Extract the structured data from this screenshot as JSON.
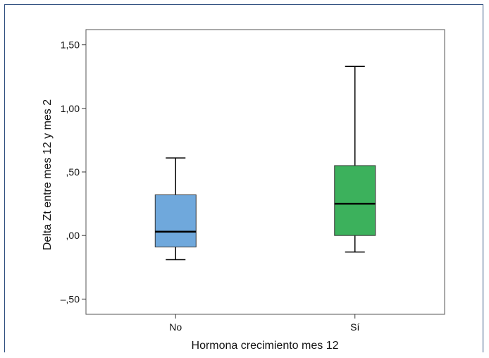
{
  "chart_data": {
    "type": "boxplot",
    "xlabel": "Hormona crecimiento mes 12",
    "ylabel": "Delta Zt entre mes 12 y mes 2",
    "ylim": [
      -0.62,
      1.62
    ],
    "y_ticks": [
      {
        "value": 1.5,
        "label": "1,50"
      },
      {
        "value": 1.0,
        "label": "1,00"
      },
      {
        "value": 0.5,
        "label": ",50"
      },
      {
        "value": 0.0,
        "label": ",00"
      },
      {
        "value": -0.5,
        "label": "–,50"
      }
    ],
    "categories": [
      "No",
      "Sí"
    ],
    "boxes": [
      {
        "category": "No",
        "min": -0.19,
        "q1": -0.09,
        "median": 0.03,
        "q3": 0.32,
        "max": 0.61,
        "color": "#6fa8dc"
      },
      {
        "category": "Sí",
        "min": -0.13,
        "q1": 0.0,
        "median": 0.25,
        "q3": 0.55,
        "max": 1.33,
        "color": "#3cb15c"
      }
    ],
    "grid": false
  }
}
